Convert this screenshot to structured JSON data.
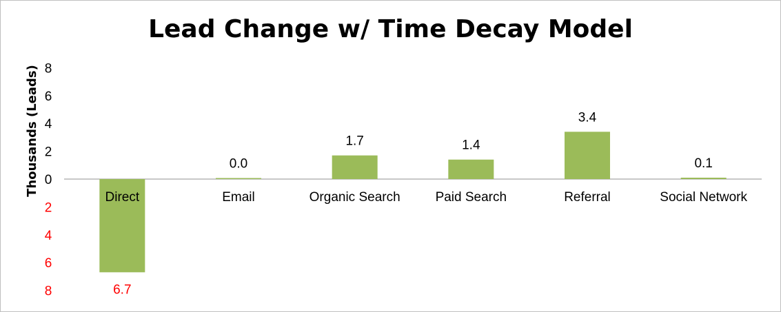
{
  "chart_data": {
    "type": "bar",
    "title": "Lead Change w/ Time Decay Model",
    "xlabel": "",
    "ylabel": "Thousands (Leads)",
    "categories": [
      "Direct",
      "Email",
      "Organic Search",
      "Paid Search",
      "Referral",
      "Social Network"
    ],
    "values": [
      -6.7,
      0.0,
      1.7,
      1.4,
      3.4,
      0.1
    ],
    "data_labels": [
      "6.7",
      "0.0",
      "1.7",
      "1.4",
      "3.4",
      "0.1"
    ],
    "ylim": [
      -8,
      8
    ],
    "y_ticks": [
      8,
      6,
      4,
      2,
      0,
      -2,
      -4,
      -6,
      -8
    ],
    "y_tick_labels": [
      "8",
      "6",
      "4",
      "2",
      "0",
      "2",
      "4",
      "6",
      "8"
    ],
    "grid": false,
    "legend": "none",
    "colors": {
      "bar": "#9bbb59",
      "positive_text": "#000000",
      "negative_text": "#ff0000",
      "axis": "#a6a6a6"
    }
  }
}
